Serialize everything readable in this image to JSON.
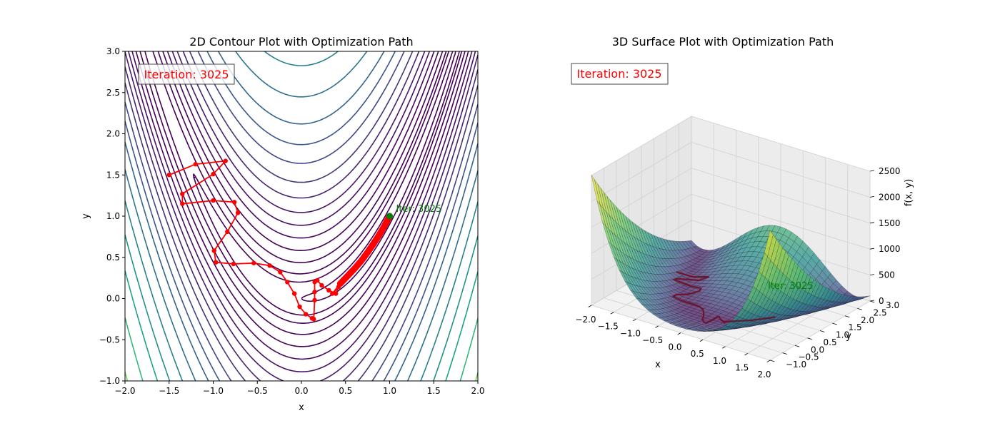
{
  "chart_data": [
    {
      "type": "line",
      "subtype": "contour",
      "title": "2D Contour Plot with Optimization Path",
      "xlabel": "x",
      "ylabel": "y",
      "xlim": [
        -2,
        2
      ],
      "ylim": [
        -1,
        3
      ],
      "x_ticks": [
        "−2.0",
        "−1.5",
        "−1.0",
        "−0.5",
        "0.0",
        "0.5",
        "1.0",
        "1.5",
        "2.0"
      ],
      "y_ticks": [
        "−1.0",
        "−0.5",
        "0.0",
        "0.5",
        "1.0",
        "1.5",
        "2.0",
        "2.5",
        "3.0"
      ],
      "grid": false,
      "function": "rosenbrock",
      "annotation_box": "Iteration: 3025",
      "endpoint_label": "Iter: 3025",
      "endpoint": [
        1.0,
        1.0
      ],
      "colors": {
        "path": "#ff0000",
        "endpoint": "#008000",
        "annotation": "#ff0000"
      },
      "contour_levels": [
        {
          "level": 1,
          "color": "#440154"
        },
        {
          "level": 5,
          "color": "#440154"
        },
        {
          "level": 10,
          "color": "#440154"
        },
        {
          "level": 20,
          "color": "#440154"
        },
        {
          "level": 35,
          "color": "#440154"
        },
        {
          "level": 55,
          "color": "#45085b"
        },
        {
          "level": 80,
          "color": "#461061"
        },
        {
          "level": 110,
          "color": "#471866"
        },
        {
          "level": 150,
          "color": "#46246e"
        },
        {
          "level": 200,
          "color": "#443475"
        },
        {
          "level": 270,
          "color": "#3f4587"
        },
        {
          "level": 350,
          "color": "#3a548c"
        },
        {
          "level": 450,
          "color": "#33638d"
        },
        {
          "level": 600,
          "color": "#2d718e"
        },
        {
          "level": 800,
          "color": "#26828e"
        },
        {
          "level": 1050,
          "color": "#21918c"
        },
        {
          "level": 1350,
          "color": "#1fa088"
        },
        {
          "level": 1800,
          "color": "#35b779"
        },
        {
          "level": 2400,
          "color": "#6ece58"
        },
        {
          "level": 3000,
          "color": "#fde725"
        }
      ],
      "path": {
        "x": [
          -1.5,
          -1.2,
          -0.86,
          -1.0,
          -1.35,
          -1.35,
          -1.0,
          -0.76,
          -0.72,
          -0.84,
          -0.99,
          -0.97,
          -0.77,
          -0.54,
          -0.36,
          -0.24,
          -0.16,
          -0.08,
          -0.02,
          0.05,
          0.12,
          0.14,
          0.15,
          0.15,
          0.15,
          0.18,
          0.23,
          0.31,
          0.39,
          0.42,
          0.35,
          0.44,
          0.52,
          0.6,
          0.68,
          0.75,
          0.82,
          0.88,
          0.94,
          0.98,
          1.0
        ],
        "y": [
          1.5,
          1.63,
          1.67,
          1.51,
          1.27,
          1.15,
          1.19,
          1.17,
          1.04,
          0.81,
          0.58,
          0.44,
          0.42,
          0.43,
          0.4,
          0.32,
          0.2,
          0.06,
          -0.1,
          -0.19,
          -0.24,
          -0.25,
          -0.02,
          0.08,
          0.2,
          0.22,
          0.16,
          0.1,
          0.06,
          0.14,
          0.06,
          0.18,
          0.27,
          0.36,
          0.46,
          0.56,
          0.67,
          0.77,
          0.88,
          0.96,
          1.0
        ]
      }
    },
    {
      "type": "surface",
      "title": "3D Surface Plot with Optimization Path",
      "xlabel": "x",
      "ylabel": "y",
      "zlabel": "f(x, y)",
      "xlim": [
        -2,
        2
      ],
      "ylim": [
        -1,
        3
      ],
      "zlim": [
        0,
        2500
      ],
      "x_ticks": [
        "−2.0",
        "−1.5",
        "−1.0",
        "−0.5",
        "0.0",
        "0.5",
        "1.0",
        "1.5",
        "2.0"
      ],
      "y_ticks": [
        "−1.0",
        "−0.5",
        "0.0",
        "0.5",
        "1.0",
        "1.5",
        "2.0",
        "2.5",
        "3.0"
      ],
      "z_ticks": [
        "0",
        "500",
        "1000",
        "1500",
        "2000",
        "2500"
      ],
      "annotation_box": "Iteration: 3025",
      "endpoint_label": "Iter: 3025",
      "grid": true
    }
  ]
}
